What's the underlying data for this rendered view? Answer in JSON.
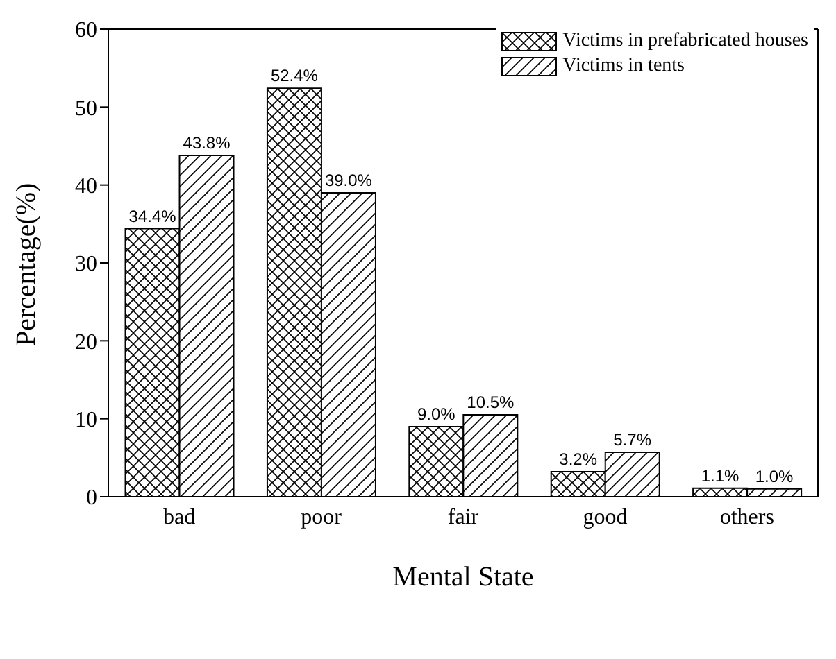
{
  "chart_data": {
    "type": "bar",
    "xlabel": "Mental State",
    "ylabel": "Percentage(%)",
    "categories": [
      "bad",
      "poor",
      "fair",
      "good",
      "others"
    ],
    "series": [
      {
        "name": "Victims in prefabricated houses",
        "color": "#000000",
        "values": [
          34.4,
          52.4,
          9.0,
          3.2,
          1.1
        ],
        "value_labels": [
          "34.4%",
          "52.4%",
          "9.0%",
          "3.2%",
          "1.1%"
        ]
      },
      {
        "name": "Victims in tents",
        "color": "#000000",
        "values": [
          43.8,
          39.0,
          10.5,
          5.7,
          1.0
        ],
        "value_labels": [
          "43.8%",
          "39.0%",
          "10.5%",
          "5.7%",
          "1.0%"
        ]
      }
    ],
    "ylim": [
      0,
      60
    ],
    "yticks": [
      0,
      10,
      20,
      30,
      40,
      50,
      60
    ],
    "grid": false,
    "legend": "top right"
  }
}
